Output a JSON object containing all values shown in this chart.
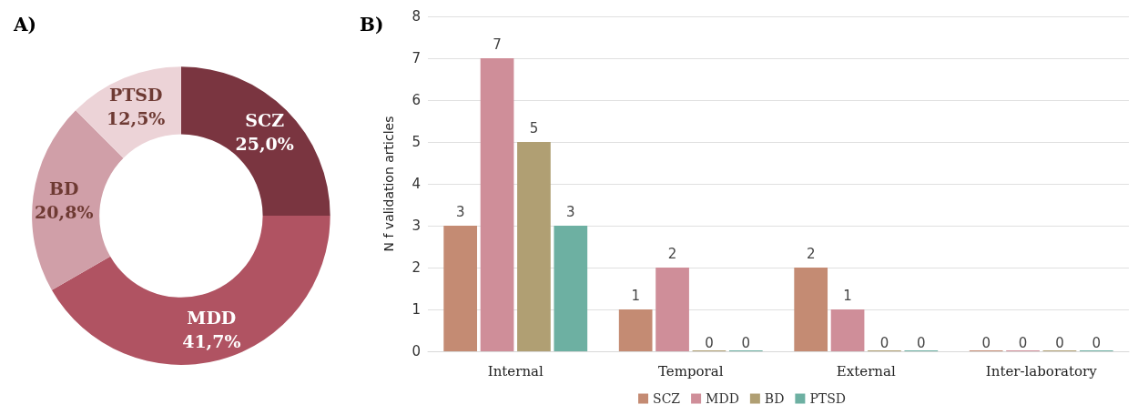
{
  "chart_data": [
    {
      "type": "donut",
      "title": "A)",
      "categories": [
        "SCZ",
        "MDD",
        "BD",
        "PTSD"
      ],
      "values": [
        25.0,
        41.7,
        20.8,
        12.5
      ],
      "colors": [
        "#7a3540",
        "#b05362",
        "#d09fa8",
        "#ecd3d7"
      ],
      "value_labels": [
        "25,0%",
        "41,7%",
        "20,8%",
        "12,5%"
      ]
    },
    {
      "type": "bar",
      "title": "B)",
      "categories": [
        "Internal",
        "Temporal",
        "External",
        "Inter-laboratory"
      ],
      "ylabel": "N f validation articles",
      "ylim": [
        0,
        8
      ],
      "yticks": [
        0,
        1,
        2,
        3,
        4,
        5,
        6,
        7,
        8
      ],
      "grid": "y",
      "legend": "bottom",
      "data_labels": true,
      "series": [
        {
          "name": "SCZ",
          "color": "#c48b73",
          "values": [
            3,
            1,
            2,
            0
          ]
        },
        {
          "name": "MDD",
          "color": "#cf8e99",
          "values": [
            7,
            2,
            1,
            0
          ]
        },
        {
          "name": "BD",
          "color": "#b09f73",
          "values": [
            5,
            0,
            0,
            0
          ]
        },
        {
          "name": "PTSD",
          "color": "#6db0a2",
          "values": [
            3,
            0,
            0,
            0
          ]
        }
      ]
    }
  ]
}
